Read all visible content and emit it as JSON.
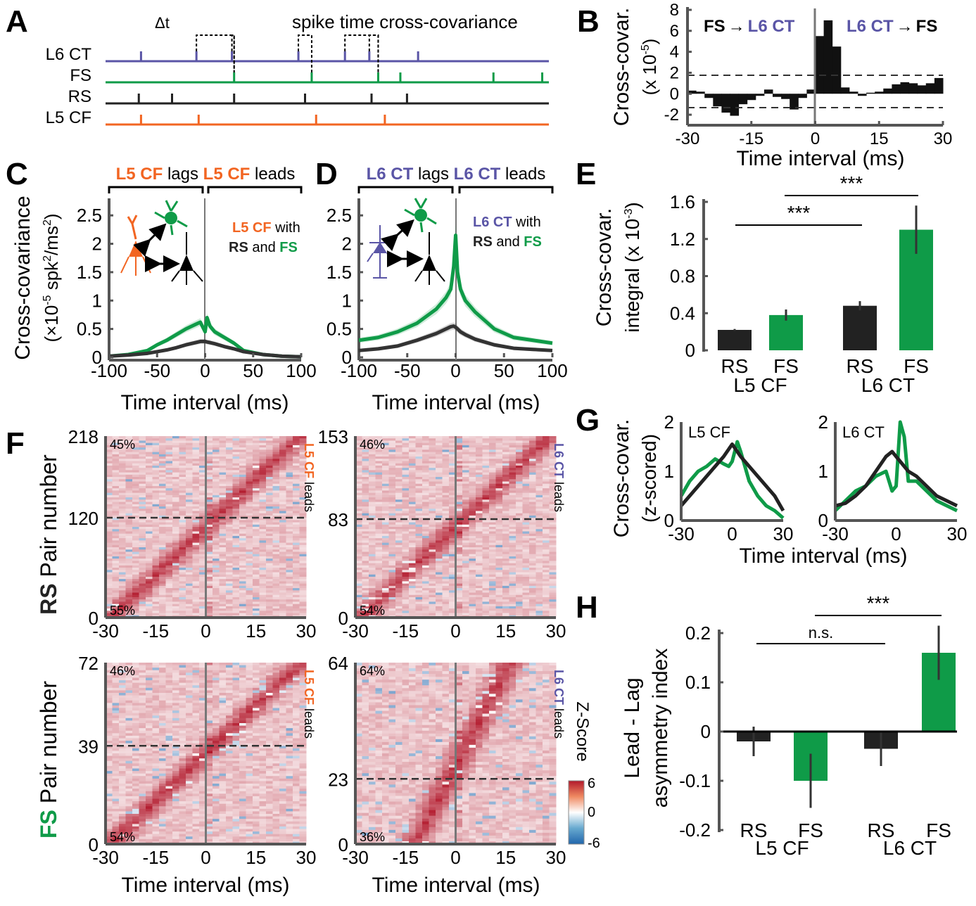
{
  "colors": {
    "l6ct": "#5a55a6",
    "fs": "#0f9b48",
    "rs": "#222222",
    "l5cf": "#f26522",
    "gray": "#666666"
  },
  "panel_labels": [
    "A",
    "B",
    "C",
    "D",
    "E",
    "F",
    "G",
    "H"
  ],
  "panelA": {
    "title": "spike time cross-covariance",
    "dt_label": "Δt",
    "rows": [
      {
        "label": "L6 CT",
        "color": "l6ct",
        "spikes": [
          0.16,
          0.41,
          0.57,
          0.87,
          1.08,
          1.19,
          1.41
        ]
      },
      {
        "label": "FS",
        "color": "fs",
        "spikes": [
          0.58,
          0.93,
          1.23,
          1.33,
          1.75,
          1.97
        ]
      },
      {
        "label": "RS",
        "color": "rs",
        "spikes": [
          0.15,
          0.3,
          0.58,
          0.9,
          1.2,
          1.36
        ]
      },
      {
        "label": "L5 CF",
        "color": "l5cf",
        "spikes": [
          0.16,
          0.42,
          0.95,
          1.26
        ]
      }
    ]
  },
  "chart_data": [
    {
      "panel": "B",
      "type": "bar",
      "ylabel": "Cross-covar.",
      "ylabel2": "(x 10",
      "ylabel_exp": "-5",
      "ylabel_end": ")",
      "xlabel": "Time interval (ms)",
      "xlim": [
        -30,
        30
      ],
      "ylim": [
        -3,
        8
      ],
      "xticks": [
        "-30",
        "-15",
        "0",
        "15",
        "30"
      ],
      "yticks": [
        "8",
        "6",
        "4",
        "2",
        "0",
        "-2"
      ],
      "thresholds": [
        1.7,
        -1.7
      ],
      "annot_left": [
        "FS",
        "→",
        "L6 CT"
      ],
      "annot_right": [
        "L6 CT",
        "→",
        "FS"
      ],
      "bin_centers": [
        -29,
        -27,
        -25,
        -23,
        -21,
        -19,
        -17,
        -15,
        -13,
        -11,
        -9,
        -7,
        -5,
        -3,
        -1,
        1,
        3,
        5,
        7,
        9,
        11,
        13,
        15,
        17,
        19,
        21,
        23,
        25,
        27,
        29
      ],
      "values": [
        0.3,
        0.2,
        -0.4,
        -1.2,
        -1.8,
        -2.1,
        -1.0,
        -0.6,
        -0.2,
        0.4,
        -0.3,
        -0.5,
        -1.5,
        -0.4,
        0.4,
        5.5,
        7.0,
        4.5,
        0.6,
        0.2,
        -0.2,
        0.1,
        0.2,
        0.5,
        0.9,
        1.1,
        1.0,
        0.8,
        1.0,
        1.5
      ]
    },
    {
      "panel": "C",
      "type": "line",
      "header": {
        "left_colored": "L5 CF",
        "left_text": " lags ",
        "right_colored": "L5 CF",
        "right_text": " leads"
      },
      "ylabel": "Cross-covariance",
      "ylabel2": "(×10",
      "ylabel_exp1": "-5",
      "ylabel_mid": " spk",
      "ylabel_exp2": "2",
      "ylabel_mid2": "/ms",
      "ylabel_exp3": "2",
      "ylabel_end": ")",
      "xlabel": "Time interval (ms)",
      "xlim": [
        -100,
        100
      ],
      "ylim": [
        0,
        2.8
      ],
      "xticks": [
        "-100",
        "-50",
        "0",
        "50",
        "100"
      ],
      "yticks": [
        "0",
        "0.5",
        "1",
        "1.5",
        "2",
        "2.5"
      ],
      "legend": {
        "line1_colored": "L5 CF",
        "line1_text": " with",
        "line2_a": "RS",
        "line2_b": " and ",
        "line2_c": "FS"
      },
      "x": [
        -100,
        -80,
        -60,
        -50,
        -40,
        -30,
        -20,
        -10,
        -5,
        0,
        2,
        5,
        10,
        20,
        30,
        40,
        60,
        80,
        100
      ],
      "series": [
        {
          "name": "FS",
          "values": [
            0.02,
            0.05,
            0.12,
            0.22,
            0.3,
            0.4,
            0.5,
            0.58,
            0.62,
            0.45,
            0.7,
            0.55,
            0.45,
            0.35,
            0.25,
            0.12,
            0.05,
            0.02,
            0.01
          ]
        },
        {
          "name": "RS",
          "values": [
            0.02,
            0.04,
            0.07,
            0.1,
            0.13,
            0.17,
            0.22,
            0.26,
            0.28,
            0.28,
            0.27,
            0.26,
            0.24,
            0.19,
            0.15,
            0.1,
            0.05,
            0.02,
            0.01
          ]
        }
      ]
    },
    {
      "panel": "D",
      "type": "line",
      "header": {
        "left_colored": "L6 CT",
        "left_text": " lags ",
        "right_colored": "L6 CT",
        "right_text": " leads"
      },
      "xlabel": "Time interval (ms)",
      "xlim": [
        -100,
        100
      ],
      "ylim": [
        0,
        2.8
      ],
      "xticks": [
        "-100",
        "-50",
        "0",
        "50",
        "100"
      ],
      "yticks": [
        "0",
        "0.5",
        "1",
        "1.5",
        "2",
        "2.5"
      ],
      "legend": {
        "line1_colored": "L6 CT",
        "line1_text": " with",
        "line2_a": "RS",
        "line2_b": " and ",
        "line2_c": "FS"
      },
      "x": [
        -100,
        -80,
        -60,
        -40,
        -20,
        -10,
        -5,
        -2,
        0,
        2,
        5,
        10,
        20,
        40,
        60,
        80,
        100
      ],
      "series": [
        {
          "name": "FS",
          "values": [
            0.3,
            0.35,
            0.45,
            0.6,
            0.85,
            1.05,
            1.2,
            1.6,
            2.15,
            1.5,
            1.2,
            1.0,
            0.8,
            0.5,
            0.35,
            0.3,
            0.25
          ]
        },
        {
          "name": "RS",
          "values": [
            0.12,
            0.15,
            0.2,
            0.3,
            0.42,
            0.5,
            0.54,
            0.55,
            0.53,
            0.5,
            0.45,
            0.4,
            0.32,
            0.22,
            0.16,
            0.14,
            0.12
          ]
        }
      ]
    },
    {
      "panel": "E",
      "type": "bar",
      "ylabel": "Cross-covar.",
      "ylabel2": "integral (x 10",
      "ylabel_exp": "-3",
      "ylabel_end": ")",
      "ylim": [
        0,
        1.6
      ],
      "yticks": [
        "0",
        "0.4",
        "0.8",
        "1.2",
        "1.6"
      ],
      "categories": [
        "RS",
        "FS",
        "RS",
        "FS"
      ],
      "groups": [
        "L5 CF",
        "L6 CT"
      ],
      "values": [
        0.22,
        0.38,
        0.48,
        1.3
      ],
      "errors": [
        0.01,
        0.06,
        0.05,
        0.26
      ],
      "sig": [
        "***",
        "***"
      ]
    },
    {
      "panel": "F",
      "type": "heatmap",
      "xlabel": "Time interval (ms)",
      "xticks": [
        "-30",
        "-15",
        "0",
        "15",
        "30"
      ],
      "colorbar": {
        "label": "Z-Score",
        "ticks": [
          "6",
          "0",
          "-6"
        ],
        "range": [
          -6,
          6
        ]
      },
      "subplots": [
        {
          "id": "F-RS-L5CF",
          "ylabel_bold": "RS",
          "ylabel": " Pair number",
          "yticks": [
            "218",
            "120",
            "0"
          ],
          "n": 218,
          "split": 120,
          "top_pct": "45%",
          "bottom_pct": "55%",
          "leads_colored": "L5 CF",
          "leads_text": " leads"
        },
        {
          "id": "F-RS-L6CT",
          "yticks": [
            "153",
            "83",
            "0"
          ],
          "n": 153,
          "split": 83,
          "top_pct": "46%",
          "bottom_pct": "54%",
          "leads_colored": "L6 CT",
          "leads_text": " leads"
        },
        {
          "id": "F-FS-L5CF",
          "ylabel_bold": "FS",
          "ylabel": " Pair number",
          "yticks": [
            "72",
            "39",
            "0"
          ],
          "n": 72,
          "split": 39,
          "top_pct": "46%",
          "bottom_pct": "54%",
          "leads_colored": "L5 CF",
          "leads_text": " leads"
        },
        {
          "id": "F-FS-L6CT",
          "yticks": [
            "64",
            "23",
            "0"
          ],
          "n": 64,
          "split": 23,
          "top_pct": "64%",
          "bottom_pct": "36%",
          "leads_colored": "L6 CT",
          "leads_text": " leads"
        }
      ]
    },
    {
      "panel": "G",
      "type": "line",
      "ylabel": "Cross-covar.",
      "ylabel2": "(z-scored)",
      "xlabel": "Time interval (ms)",
      "xlim": [
        -30,
        30
      ],
      "ylim": [
        0,
        2
      ],
      "xticks": [
        "-30",
        "0",
        "30"
      ],
      "yticks": [
        "0",
        "1",
        "2"
      ],
      "subplots": [
        {
          "label": "L5 CF",
          "x": [
            -30,
            -25,
            -20,
            -15,
            -10,
            -5,
            -2,
            0,
            3,
            5,
            10,
            15,
            20,
            25,
            30
          ],
          "series": [
            {
              "name": "FS",
              "values": [
                0.5,
                0.8,
                1.0,
                1.1,
                1.25,
                1.15,
                1.1,
                1.2,
                1.6,
                1.4,
                0.8,
                0.5,
                0.3,
                0.2,
                0.05
              ]
            },
            {
              "name": "RS",
              "values": [
                0.3,
                0.5,
                0.7,
                0.9,
                1.1,
                1.3,
                1.45,
                1.55,
                1.4,
                1.3,
                1.1,
                0.9,
                0.7,
                0.5,
                0.2
              ]
            }
          ]
        },
        {
          "label": "L6 CT",
          "x": [
            -30,
            -25,
            -20,
            -15,
            -10,
            -5,
            -2,
            0,
            2,
            4,
            6,
            10,
            15,
            20,
            25,
            30
          ],
          "series": [
            {
              "name": "FS",
              "values": [
                0.2,
                0.4,
                0.6,
                0.7,
                0.9,
                1.0,
                0.6,
                0.7,
                2.0,
                1.7,
                0.8,
                0.8,
                0.6,
                0.4,
                0.3,
                0.2
              ]
            },
            {
              "name": "RS",
              "values": [
                0.3,
                0.35,
                0.5,
                0.7,
                1.0,
                1.3,
                1.4,
                1.3,
                1.2,
                1.1,
                1.0,
                0.9,
                0.7,
                0.5,
                0.4,
                0.3
              ]
            }
          ]
        }
      ]
    },
    {
      "panel": "H",
      "type": "bar",
      "ylabel": "Lead - Lag",
      "ylabel2": "asymmetry index",
      "ylim": [
        -0.2,
        0.2
      ],
      "yticks": [
        "0.2",
        "0.1",
        "0",
        "-0.1",
        "-0.2"
      ],
      "categories": [
        "RS",
        "FS",
        "RS",
        "FS"
      ],
      "groups": [
        "L5 CF",
        "L6 CT"
      ],
      "values": [
        -0.02,
        -0.1,
        -0.035,
        0.16
      ],
      "errors": [
        0.03,
        0.055,
        0.035,
        0.055
      ],
      "sig": [
        "n.s.",
        "***"
      ]
    }
  ]
}
